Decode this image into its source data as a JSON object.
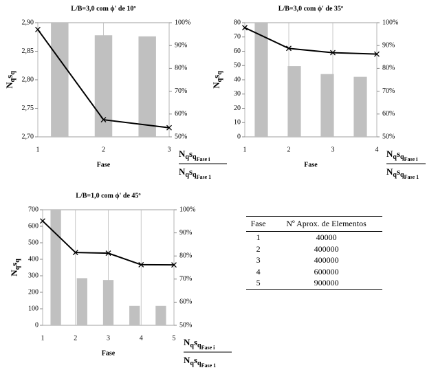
{
  "chart_data": [
    {
      "type": "combo",
      "title": "L/B=3,0 com ϕ' de 10º",
      "x": [
        1,
        2,
        3
      ],
      "xlim": [
        1,
        3
      ],
      "xticks": [
        1,
        2,
        3
      ],
      "grid": "x",
      "ylim": [
        2.7,
        2.9
      ],
      "yticks": [
        {
          "value": 2.7,
          "label": "2,70"
        },
        {
          "value": 2.75,
          "label": "2,75"
        },
        {
          "value": 2.8,
          "label": "2,80"
        },
        {
          "value": 2.85,
          "label": "2,85"
        },
        {
          "value": 2.9,
          "label": "2,90"
        }
      ],
      "y2lim": [
        50,
        100
      ],
      "y2ticks": [
        {
          "value": 50,
          "label": "50%"
        },
        {
          "value": 60,
          "label": "60%"
        },
        {
          "value": 70,
          "label": "70%"
        },
        {
          "value": 80,
          "label": "80%"
        },
        {
          "value": 90,
          "label": "90%"
        },
        {
          "value": 100,
          "label": "100%"
        }
      ],
      "series": [
        {
          "type": "bar",
          "axis": "y2",
          "color": "#c0c0c0",
          "values": [
            100,
            94.5,
            94
          ]
        },
        {
          "type": "line",
          "color": "#000000",
          "values": [
            2.888,
            2.73,
            2.716
          ]
        }
      ],
      "x_label": "Fase",
      "y_label": [
        "N",
        "q",
        "s",
        "q"
      ],
      "y2_label": {
        "numerator": [
          "N",
          "q",
          "s",
          "q",
          "Fase i"
        ],
        "denominator": [
          "N",
          "q",
          "s",
          "q",
          "Fase 1"
        ]
      }
    },
    {
      "type": "combo",
      "title": "L/B=3,0 com ϕ' de 35º",
      "x": [
        1,
        2,
        3,
        4
      ],
      "xlim": [
        1,
        4
      ],
      "xticks": [
        1,
        2,
        3,
        4
      ],
      "grid": "x",
      "ylim": [
        0,
        80
      ],
      "yticks": [
        0,
        10,
        20,
        30,
        40,
        50,
        60,
        70,
        80
      ],
      "y2lim": [
        50,
        100
      ],
      "y2ticks": [
        {
          "value": 50,
          "label": "50%"
        },
        {
          "value": 60,
          "label": "60%"
        },
        {
          "value": 70,
          "label": "70%"
        },
        {
          "value": 80,
          "label": "80%"
        },
        {
          "value": 90,
          "label": "90%"
        },
        {
          "value": 100,
          "label": "100%"
        }
      ],
      "series": [
        {
          "type": "bar",
          "axis": "y2",
          "color": "#c0c0c0",
          "values": [
            100,
            81,
            77.5,
            76.3
          ]
        },
        {
          "type": "line",
          "color": "#000000",
          "values": [
            76.5,
            62,
            59,
            58
          ]
        }
      ],
      "x_label": "Fase",
      "y_label": [
        "N",
        "q",
        "s",
        "q"
      ],
      "y2_label": {
        "numerator": [
          "N",
          "q",
          "s",
          "q",
          "Fase i"
        ],
        "denominator": [
          "N",
          "q",
          "s",
          "q",
          "Fase 1"
        ]
      }
    },
    {
      "type": "combo",
      "title": "L/B=1,0 com ϕ' de 45º",
      "x": [
        1,
        2,
        3,
        4,
        5
      ],
      "xlim": [
        1,
        5
      ],
      "xticks": [
        1,
        2,
        3,
        4,
        5
      ],
      "grid": "x",
      "ylim": [
        0,
        700
      ],
      "yticks": [
        0,
        100,
        200,
        300,
        400,
        500,
        600,
        700
      ],
      "y2lim": [
        50,
        100
      ],
      "y2ticks": [
        {
          "value": 50,
          "label": "50%"
        },
        {
          "value": 60,
          "label": "60%"
        },
        {
          "value": 70,
          "label": "70%"
        },
        {
          "value": 80,
          "label": "80%"
        },
        {
          "value": 90,
          "label": "90%"
        },
        {
          "value": 100,
          "label": "100%"
        }
      ],
      "series": [
        {
          "type": "bar",
          "axis": "y2",
          "color": "#c0c0c0",
          "values": [
            100,
            70.4,
            69.6,
            58.4,
            58.4
          ]
        },
        {
          "type": "line",
          "color": "#000000",
          "values": [
            632,
            441,
            437,
            367,
            366
          ]
        }
      ],
      "x_label": "Fase",
      "y_label": [
        "N",
        "q",
        "s",
        "q"
      ],
      "y2_label": {
        "numerator": [
          "N",
          "q",
          "s",
          "q",
          "Fase i"
        ],
        "denominator": [
          "N",
          "q",
          "s",
          "q",
          "Fase 1"
        ]
      }
    }
  ],
  "table": {
    "header": [
      "Fase",
      "Nº Aprox. de Elementos"
    ],
    "rows": [
      [
        1,
        40000
      ],
      [
        2,
        400000
      ],
      [
        3,
        400000
      ],
      [
        4,
        600000
      ],
      [
        5,
        900000
      ]
    ]
  }
}
